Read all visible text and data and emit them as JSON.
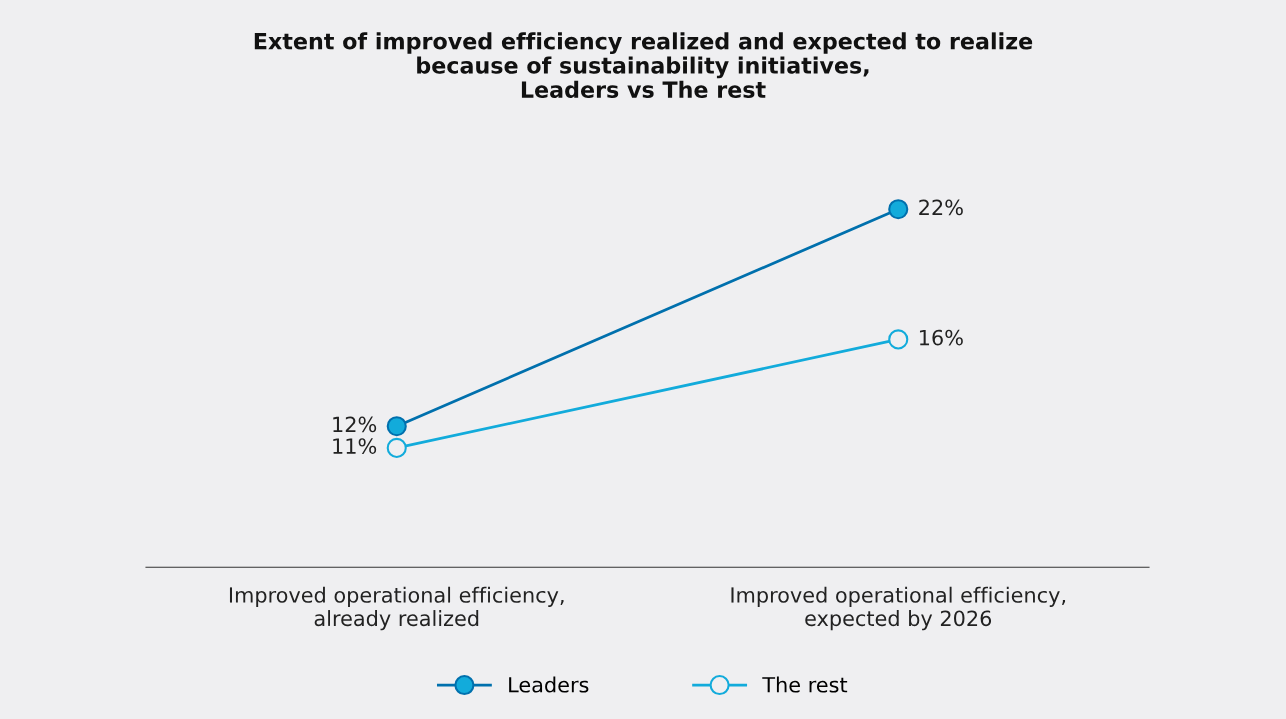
{
  "chart_data": {
    "type": "line",
    "title": "Extent of improved efficiency realized and expected to realize\nbecause of sustainability initiatives,\nLeaders vs The rest",
    "categories": [
      "Improved operational efficiency,\nalready realized",
      "Improved operational efficiency,\nexpected by 2026"
    ],
    "series": [
      {
        "name": "Leaders",
        "color": "#0070ad",
        "values": [
          12,
          22
        ],
        "value_labels": [
          "12%",
          "22%"
        ]
      },
      {
        "name": "The rest",
        "color": "#12abdb",
        "values": [
          11,
          16
        ],
        "value_labels": [
          "11%",
          "16%"
        ]
      }
    ],
    "marker": "circle",
    "line_style": "solid",
    "grid": false,
    "legend": "bottom"
  }
}
